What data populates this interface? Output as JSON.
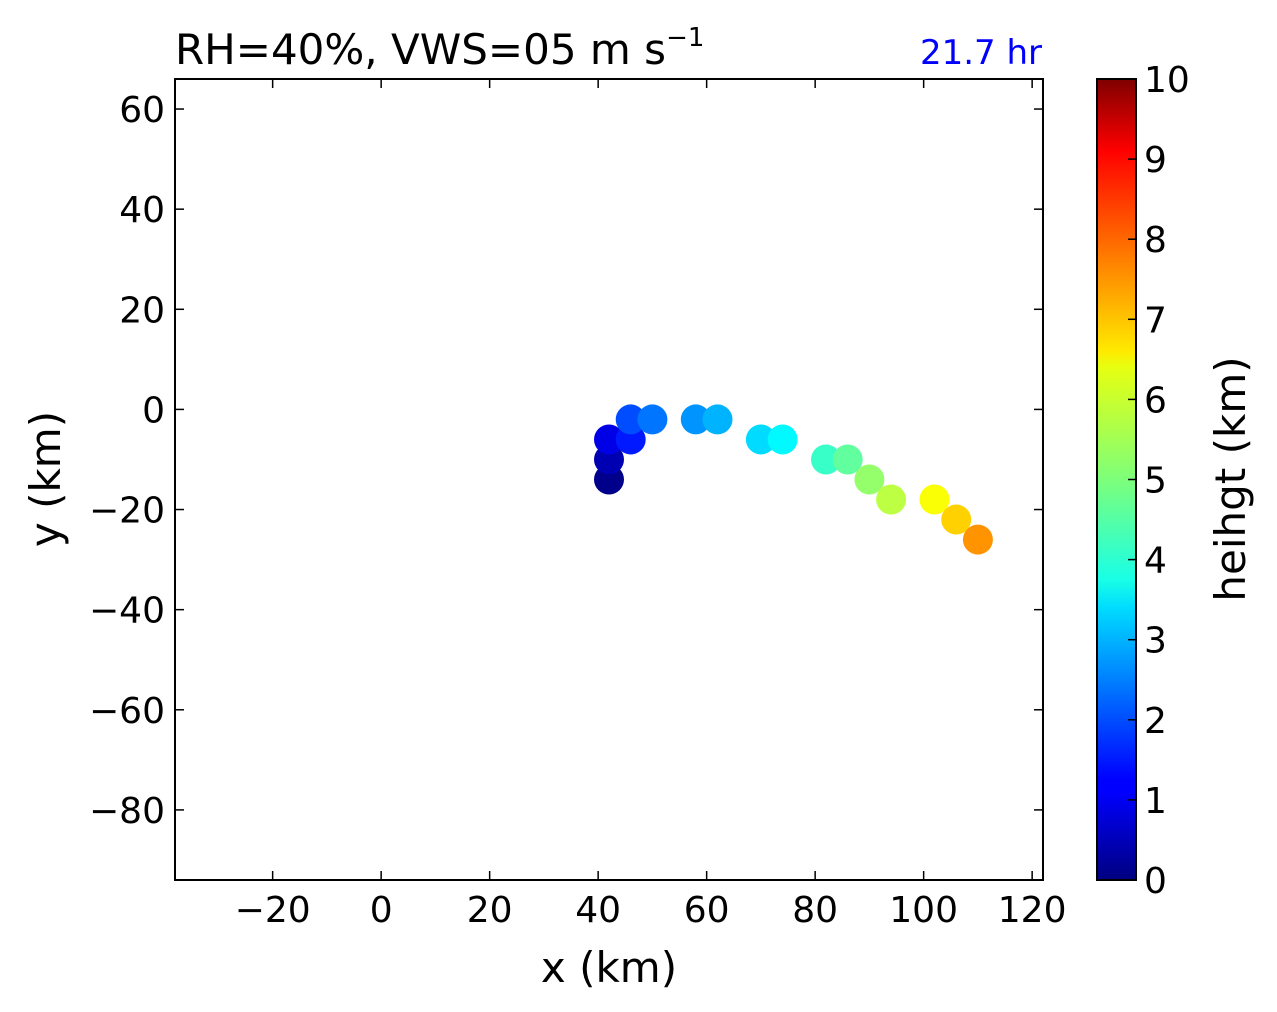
{
  "chart_data": {
    "type": "scatter",
    "title": "RH=40%, VWS=05 m s",
    "title_superscript": "−1",
    "annotation": "21.7 hr",
    "annotation_color": "#0000ff",
    "xlabel": "x (km)",
    "ylabel": "y (km)",
    "xlim": [
      -38,
      122
    ],
    "ylim": [
      -94,
      66
    ],
    "xticks": [
      -20,
      0,
      20,
      40,
      60,
      80,
      100,
      120
    ],
    "yticks": [
      -80,
      -60,
      -40,
      -20,
      0,
      20,
      40,
      60
    ],
    "xtick_labels": [
      "−20",
      "0",
      "20",
      "40",
      "60",
      "80",
      "100",
      "120"
    ],
    "ytick_labels": [
      "−80",
      "−60",
      "−40",
      "−20",
      "0",
      "20",
      "40",
      "60"
    ],
    "grid": false,
    "colorbar": {
      "label": "heihgt (km)",
      "colormap": "jet",
      "range": [
        0,
        10
      ],
      "ticks": [
        0,
        1,
        2,
        3,
        4,
        5,
        6,
        7,
        8,
        9,
        10
      ],
      "tick_labels": [
        "0",
        "1",
        "2",
        "3",
        "4",
        "5",
        "6",
        "7",
        "8",
        "9",
        "10"
      ]
    },
    "points": [
      {
        "x": 42,
        "y": -14,
        "height": 0.1
      },
      {
        "x": 42,
        "y": -10,
        "height": 0.5
      },
      {
        "x": 42,
        "y": -6,
        "height": 1.0
      },
      {
        "x": 46,
        "y": -6,
        "height": 1.5
      },
      {
        "x": 46,
        "y": -2,
        "height": 2.0
      },
      {
        "x": 50,
        "y": -2,
        "height": 2.4
      },
      {
        "x": 58,
        "y": -2,
        "height": 2.7
      },
      {
        "x": 62,
        "y": -2,
        "height": 3.0
      },
      {
        "x": 70,
        "y": -6,
        "height": 3.4
      },
      {
        "x": 74,
        "y": -6,
        "height": 3.7
      },
      {
        "x": 82,
        "y": -10,
        "height": 4.3
      },
      {
        "x": 86,
        "y": -10,
        "height": 4.7
      },
      {
        "x": 90,
        "y": -14,
        "height": 5.2
      },
      {
        "x": 94,
        "y": -18,
        "height": 5.6
      },
      {
        "x": 102,
        "y": -18,
        "height": 6.2
      },
      {
        "x": 106,
        "y": -22,
        "height": 6.7
      },
      {
        "x": 110,
        "y": -26,
        "height": 7.3
      }
    ]
  }
}
